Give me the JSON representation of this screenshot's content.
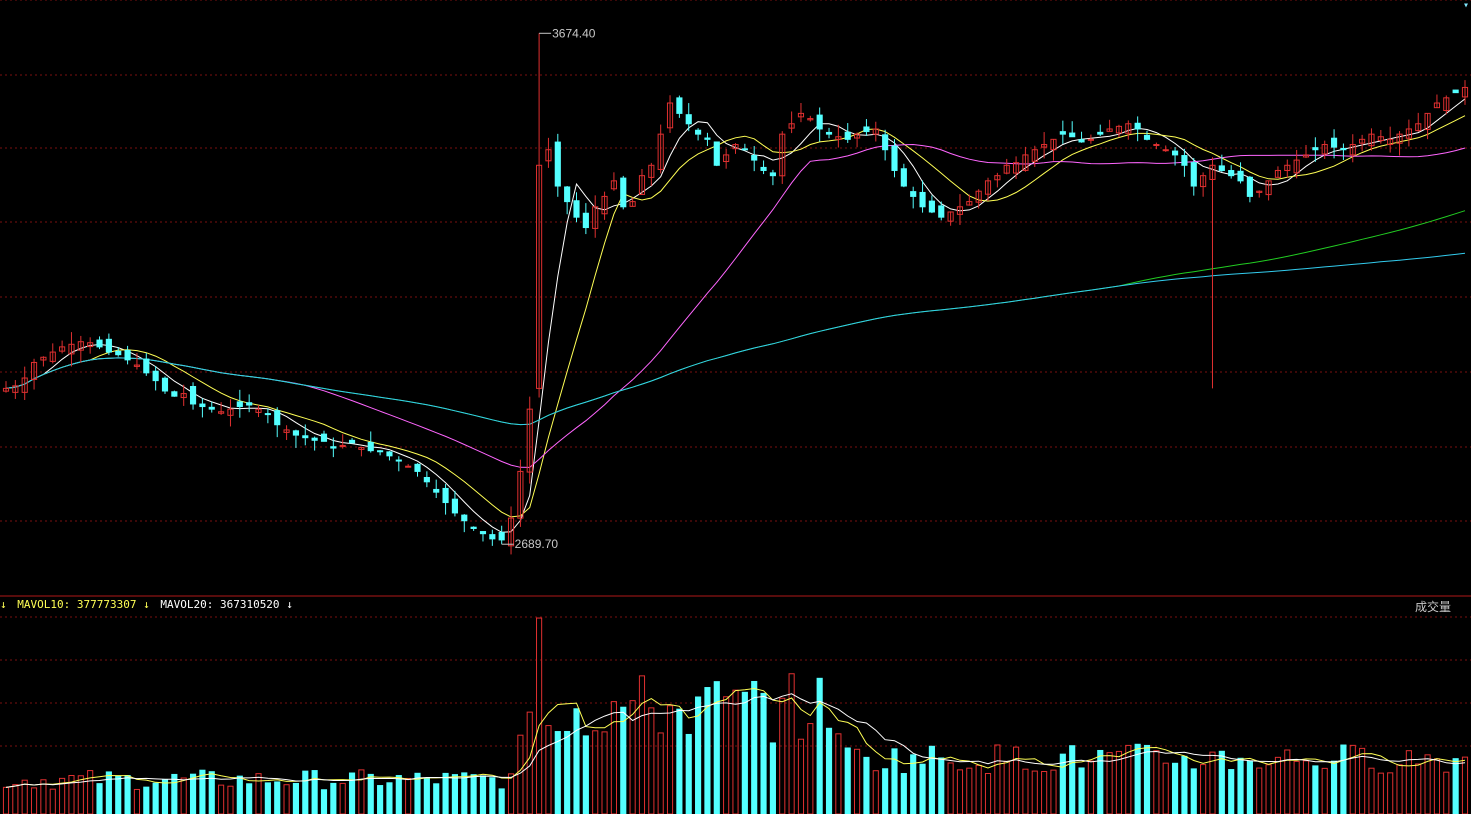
{
  "colors": {
    "background": "#000000",
    "up": "#e03030",
    "down": "#54ffff",
    "grid": "#7a1010",
    "divider": "#b01818",
    "ma_white": "#ffffff",
    "ma_yellow": "#ffff55",
    "ma_magenta": "#ff66ff",
    "ma_green": "#22cc22",
    "ma_cyan": "#33ccee",
    "label": "#c8c8c8"
  },
  "vol_header": {
    "mavol10_label": "MAVOL10:",
    "mavol10_value": "377773307",
    "mavol10_arrow": "↓",
    "mavol20_label": "MAVOL20:",
    "mavol20_value": "367310520",
    "mavol20_arrow": "↓"
  },
  "panel_title": "成交量",
  "chart_data": {
    "type": "candlestick",
    "price_range": [
      2640,
      3700
    ],
    "high_label": "3674.40",
    "low_label": "2689.70",
    "high_value": 3674.4,
    "low_value": 2689.7,
    "moving_averages": [
      {
        "name": "MA5",
        "color": "white",
        "period": 5
      },
      {
        "name": "MA10",
        "color": "yellow",
        "period": 10
      },
      {
        "name": "MA30",
        "color": "magenta",
        "period": 30
      },
      {
        "name": "MA120",
        "color": "green",
        "period": 120
      },
      {
        "name": "MA250",
        "color": "cyan",
        "period": 250
      }
    ],
    "closes": [
      2990,
      2995,
      3010,
      3040,
      3050,
      3060,
      3070,
      3075,
      3080,
      3078,
      3070,
      3060,
      3055,
      3045,
      3035,
      3020,
      3005,
      2985,
      2975,
      2980,
      2960,
      2955,
      2950,
      2945,
      2950,
      2955,
      2958,
      2950,
      2940,
      2920,
      2910,
      2900,
      2895,
      2890,
      2888,
      2875,
      2880,
      2885,
      2876,
      2870,
      2868,
      2860,
      2850,
      2840,
      2830,
      2810,
      2790,
      2770,
      2750,
      2735,
      2720,
      2710,
      2700,
      2698,
      2740,
      2830,
      2950,
      3420,
      3450,
      3380,
      3350,
      3320,
      3300,
      3340,
      3360,
      3390,
      3340,
      3350,
      3400,
      3420,
      3480,
      3540,
      3520,
      3500,
      3480,
      3470,
      3420,
      3440,
      3460,
      3450,
      3430,
      3410,
      3400,
      3480,
      3500,
      3520,
      3510,
      3490,
      3480,
      3475,
      3470,
      3480,
      3485,
      3490,
      3450,
      3410,
      3380,
      3360,
      3340,
      3330,
      3320,
      3330,
      3340,
      3350,
      3370,
      3390,
      3400,
      3420,
      3425,
      3440,
      3450,
      3460,
      3470,
      3480,
      3475,
      3465,
      3470,
      3480,
      3490,
      3495,
      3500,
      3490,
      3470,
      3460,
      3450,
      3440,
      3420,
      3380,
      3400,
      3420,
      3410,
      3400,
      3390,
      3360,
      3370,
      3390,
      3410,
      3420,
      3430,
      3440,
      3450,
      3460,
      3455,
      3450,
      3460,
      3470,
      3480,
      3475,
      3470,
      3480,
      3490,
      3500,
      3520,
      3540,
      3550,
      3560,
      3570
    ]
  }
}
